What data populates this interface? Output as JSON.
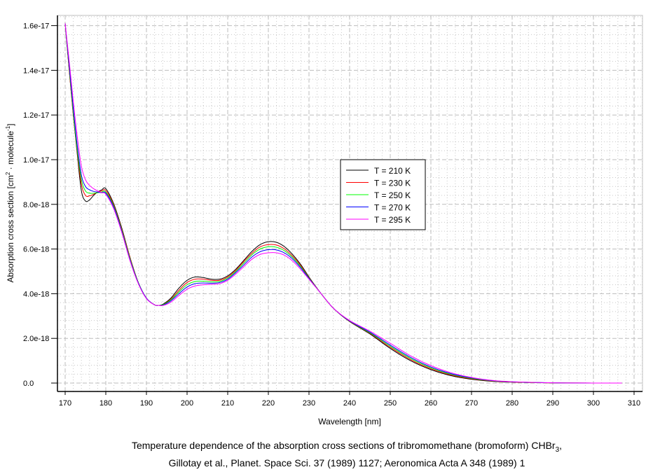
{
  "chart_data": {
    "type": "line",
    "xlabel": "Wavelength [nm]",
    "ylabel": {
      "main": "Absorption cross section [cm",
      "sup1": "2",
      "mid": " · molecule",
      "sup2": "-1",
      "end": "]"
    },
    "xlim": [
      168,
      312
    ],
    "ylim": [
      -3.5e-19,
      1.66e-17
    ],
    "x_ticks": [
      170,
      180,
      190,
      200,
      210,
      220,
      230,
      240,
      250,
      260,
      270,
      280,
      290,
      300,
      310
    ],
    "y_ticks": [
      0,
      2e-18,
      4e-18,
      6e-18,
      8e-18,
      1e-17,
      1.2e-17,
      1.4e-17,
      1.6e-17
    ],
    "y_tick_labels": [
      "0.0",
      "2.0e-18",
      "4.0e-18",
      "6.0e-18",
      "8.0e-18",
      "1.0e-17",
      "1.2e-17",
      "1.4e-17",
      "1.6e-17"
    ],
    "grid": true,
    "legend_position": "center-right",
    "y_unit_scale": 1e-18,
    "x": [
      170,
      171,
      172,
      173,
      174,
      175,
      176,
      177,
      178,
      179,
      180,
      182,
      184,
      186,
      188,
      190,
      192,
      193,
      194,
      196,
      198,
      200,
      202,
      204,
      206,
      208,
      210,
      212,
      214,
      216,
      218,
      220,
      222,
      224,
      226,
      228,
      230,
      233,
      236,
      240,
      245,
      250,
      255,
      260,
      265,
      270,
      275,
      280,
      290,
      300,
      307
    ],
    "series": [
      {
        "name": "T = 210 K",
        "color": "#000000",
        "values": [
          16.1,
          14.0,
          12.0,
          10.2,
          8.6,
          8.15,
          8.2,
          8.4,
          8.55,
          8.65,
          8.7,
          8.0,
          6.9,
          5.6,
          4.5,
          3.8,
          3.5,
          3.48,
          3.52,
          3.8,
          4.25,
          4.6,
          4.75,
          4.72,
          4.65,
          4.65,
          4.8,
          5.1,
          5.5,
          5.9,
          6.2,
          6.33,
          6.3,
          6.1,
          5.75,
          5.3,
          4.75,
          4.0,
          3.35,
          2.75,
          2.2,
          1.55,
          1.0,
          0.6,
          0.33,
          0.17,
          0.08,
          0.04,
          0.008,
          0.001,
          0
        ]
      },
      {
        "name": "T = 230 K",
        "color": "#ff0000",
        "values": [
          16.1,
          14.0,
          12.0,
          10.3,
          8.9,
          8.4,
          8.38,
          8.45,
          8.55,
          8.6,
          8.62,
          7.95,
          6.85,
          5.6,
          4.5,
          3.8,
          3.5,
          3.48,
          3.5,
          3.75,
          4.15,
          4.5,
          4.65,
          4.65,
          4.6,
          4.6,
          4.75,
          5.05,
          5.45,
          5.82,
          6.1,
          6.2,
          6.18,
          6.0,
          5.68,
          5.25,
          4.72,
          4.0,
          3.35,
          2.76,
          2.23,
          1.6,
          1.05,
          0.64,
          0.36,
          0.19,
          0.09,
          0.045,
          0.009,
          0.001,
          0
        ]
      },
      {
        "name": "T = 250 K",
        "color": "#00ff00",
        "values": [
          16.1,
          14.1,
          12.1,
          10.4,
          9.1,
          8.6,
          8.5,
          8.5,
          8.52,
          8.55,
          8.55,
          7.9,
          6.8,
          5.55,
          4.5,
          3.8,
          3.5,
          3.48,
          3.5,
          3.72,
          4.08,
          4.4,
          4.55,
          4.56,
          4.53,
          4.55,
          4.7,
          5.0,
          5.38,
          5.75,
          6.0,
          6.1,
          6.08,
          5.92,
          5.62,
          5.2,
          4.7,
          4.0,
          3.35,
          2.77,
          2.25,
          1.65,
          1.1,
          0.68,
          0.39,
          0.21,
          0.1,
          0.05,
          0.01,
          0.001,
          0
        ]
      },
      {
        "name": "T = 270 K",
        "color": "#0000ff",
        "values": [
          16.1,
          14.2,
          12.3,
          10.6,
          9.3,
          8.8,
          8.65,
          8.58,
          8.55,
          8.52,
          8.5,
          7.85,
          6.75,
          5.5,
          4.48,
          3.8,
          3.5,
          3.48,
          3.48,
          3.68,
          4.0,
          4.3,
          4.45,
          4.48,
          4.47,
          4.5,
          4.65,
          4.95,
          5.3,
          5.65,
          5.88,
          5.97,
          5.96,
          5.82,
          5.55,
          5.15,
          4.68,
          4.0,
          3.35,
          2.78,
          2.28,
          1.7,
          1.15,
          0.72,
          0.42,
          0.23,
          0.11,
          0.055,
          0.011,
          0.001,
          0
        ]
      },
      {
        "name": "T = 295 K",
        "color": "#ff00ff",
        "values": [
          16.1,
          14.4,
          12.6,
          11.0,
          9.7,
          9.1,
          8.85,
          8.7,
          8.6,
          8.52,
          8.45,
          7.78,
          6.7,
          5.45,
          4.45,
          3.78,
          3.5,
          3.48,
          3.47,
          3.62,
          3.92,
          4.2,
          4.35,
          4.4,
          4.42,
          4.45,
          4.6,
          4.88,
          5.22,
          5.55,
          5.76,
          5.83,
          5.83,
          5.72,
          5.46,
          5.08,
          4.65,
          4.0,
          3.35,
          2.8,
          2.32,
          1.78,
          1.22,
          0.78,
          0.46,
          0.25,
          0.12,
          0.06,
          0.012,
          0.001,
          0
        ]
      }
    ]
  },
  "caption": {
    "line1_main": "Temperature dependence of the absorption cross sections of tribromomethane (bromoform) CHBr",
    "line1_sub": "3",
    "line1_end": ",",
    "line2": "Gillotay et al., Planet. Space Sci. 37 (1989) 1127; Aeronomica Acta A 348 (1989) 1"
  }
}
